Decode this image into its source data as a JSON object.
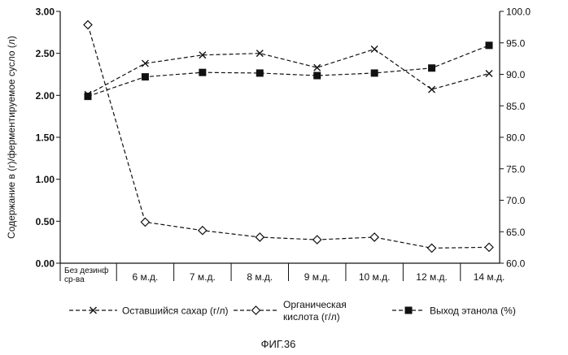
{
  "figure_caption": "ФИГ.36",
  "chart_data": {
    "type": "line",
    "categories": [
      "Без дезинф ср-ва",
      "6 м.д.",
      "7 м.д.",
      "8 м.д.",
      "9 м.д.",
      "10 м.д.",
      "12 м.д.",
      "14 м.д."
    ],
    "category_labels": [
      [
        "Без дезинф",
        "ср-ва"
      ],
      [
        "6 м.д."
      ],
      [
        "7 м.д."
      ],
      [
        "8 м.д."
      ],
      [
        "9 м.д."
      ],
      [
        "10 м.д."
      ],
      [
        "12 м.д."
      ],
      [
        "14 м.д."
      ]
    ],
    "ylabel_left": "Содержание в (г)/ферментируемое сусло (л)",
    "ylim_left": [
      0,
      3
    ],
    "yticks_left": [
      "0.00",
      "0.50",
      "1.00",
      "1.50",
      "2.00",
      "2.50",
      "3.00"
    ],
    "ylim_right": [
      60,
      100
    ],
    "yticks_right": [
      "60.0",
      "65.0",
      "70.0",
      "75.0",
      "80.0",
      "85.0",
      "90.0",
      "95.0",
      "100.0"
    ],
    "grid": false,
    "legend_position": "bottom",
    "series": [
      {
        "name": "Оставшийся сахар (г/л)",
        "axis": "left",
        "marker": "x",
        "values": [
          2.01,
          2.38,
          2.48,
          2.5,
          2.33,
          2.55,
          2.07,
          2.26
        ]
      },
      {
        "name": "Органическая кислота (г/л)",
        "axis": "left",
        "marker": "diamond",
        "values": [
          2.84,
          0.49,
          0.39,
          0.31,
          0.28,
          0.31,
          0.18,
          0.19
        ]
      },
      {
        "name": "Выход этанола (%)",
        "axis": "right",
        "marker": "square",
        "values": [
          86.5,
          89.6,
          90.3,
          90.2,
          89.8,
          90.2,
          91.0,
          94.6
        ]
      }
    ]
  }
}
